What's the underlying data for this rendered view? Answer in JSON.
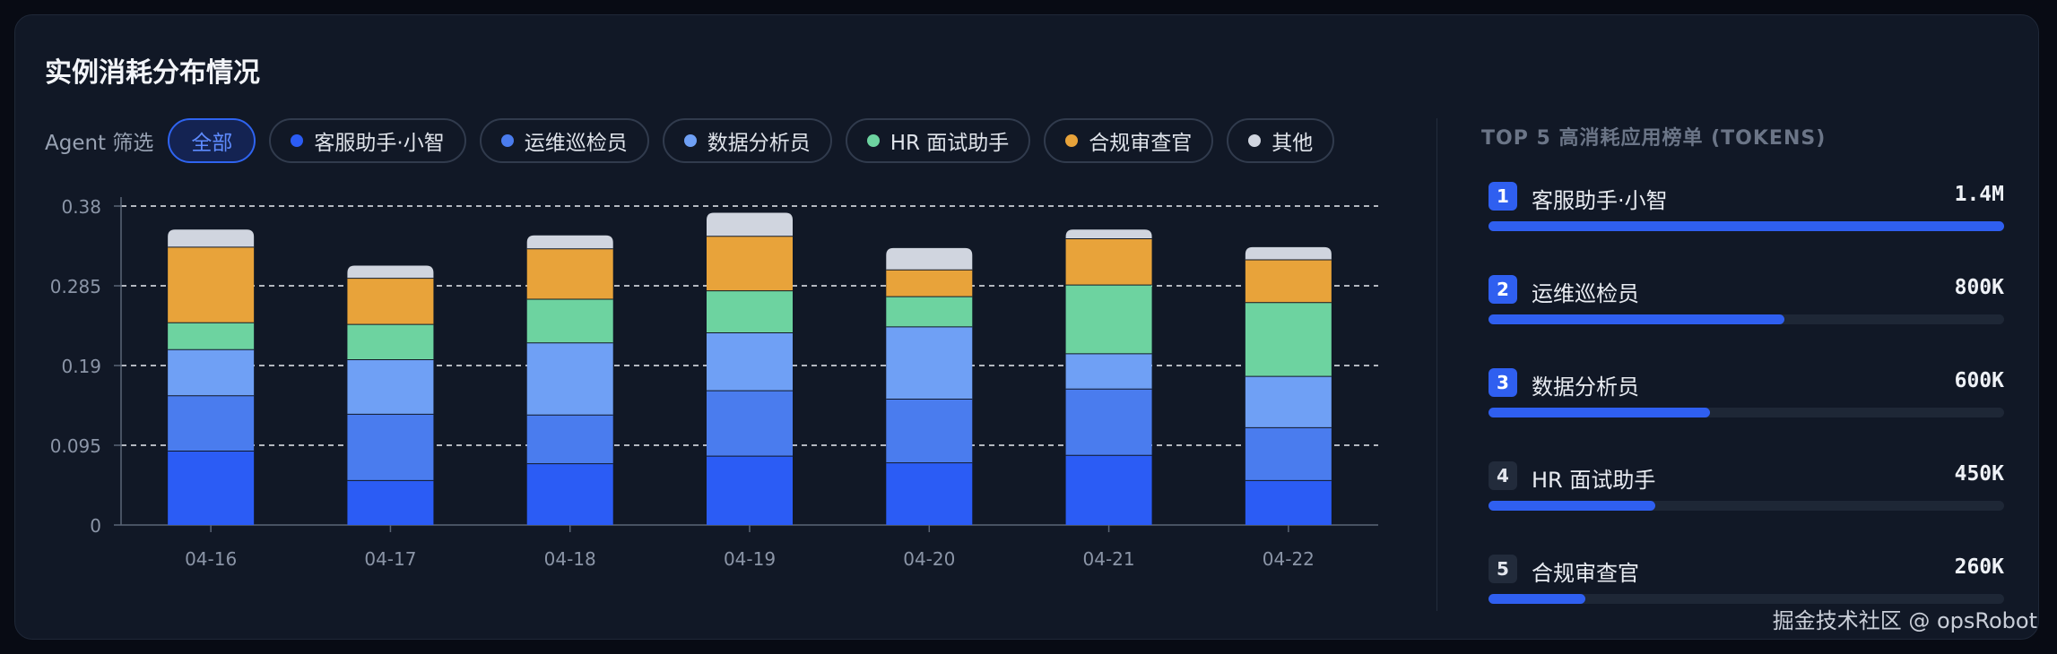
{
  "card_title": "实例消耗分布情况",
  "filter": {
    "label": "Agent 筛选",
    "chips": [
      {
        "label": "全部",
        "color": "",
        "active": true
      },
      {
        "label": "客服助手·小智",
        "color": "#2b5cf5",
        "active": false
      },
      {
        "label": "运维巡检员",
        "color": "#4a7cee",
        "active": false
      },
      {
        "label": "数据分析员",
        "color": "#6fa0f5",
        "active": false
      },
      {
        "label": "HR 面试助手",
        "color": "#6dd3a0",
        "active": false
      },
      {
        "label": "合规审查官",
        "color": "#e8a33a",
        "active": false
      },
      {
        "label": "其他",
        "color": "#d0d5df",
        "active": false
      }
    ]
  },
  "chart_data": {
    "type": "bar",
    "stacked": true,
    "categories": [
      "04-16",
      "04-17",
      "04-18",
      "04-19",
      "04-20",
      "04-21",
      "04-22"
    ],
    "yticks": [
      "0",
      "0.095",
      "0.19",
      "0.285",
      "0.38"
    ],
    "ylim": [
      0,
      0.38
    ],
    "grid": true,
    "series": [
      {
        "color": "#2b5cf5",
        "values": [
          0.088,
          0.053,
          0.073,
          0.082,
          0.074,
          0.083,
          0.053
        ]
      },
      {
        "color": "#4a7cee",
        "values": [
          0.066,
          0.079,
          0.058,
          0.078,
          0.076,
          0.079,
          0.063
        ]
      },
      {
        "color": "#6fa0f5",
        "values": [
          0.055,
          0.065,
          0.086,
          0.069,
          0.086,
          0.042,
          0.061
        ]
      },
      {
        "color": "#6dd3a0",
        "values": [
          0.032,
          0.042,
          0.052,
          0.05,
          0.036,
          0.082,
          0.088
        ]
      },
      {
        "color": "#e8a33a",
        "values": [
          0.09,
          0.055,
          0.06,
          0.065,
          0.032,
          0.055,
          0.051
        ]
      },
      {
        "color": "#d0d5df",
        "values": [
          0.021,
          0.015,
          0.016,
          0.028,
          0.026,
          0.011,
          0.015
        ]
      }
    ]
  },
  "ranking": {
    "title": "TOP 5 高消耗应用榜单 (TOKENS)",
    "items": [
      {
        "rank": "1",
        "name": "客服助手·小智",
        "value": "1.4M",
        "fraction": 1.0
      },
      {
        "rank": "2",
        "name": "运维巡检员",
        "value": "800K",
        "fraction": 0.574
      },
      {
        "rank": "3",
        "name": "数据分析员",
        "value": "600K",
        "fraction": 0.43
      },
      {
        "rank": "4",
        "name": "HR 面试助手",
        "value": "450K",
        "fraction": 0.323
      },
      {
        "rank": "5",
        "name": "合规审查官",
        "value": "260K",
        "fraction": 0.188
      }
    ]
  },
  "watermark": "掘金技术社区 @ opsRobot"
}
